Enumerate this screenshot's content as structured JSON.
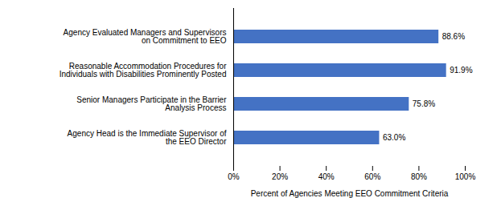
{
  "chart_data": {
    "type": "bar",
    "orientation": "horizontal",
    "categories": [
      "Agency Head is the Immediate Supervisor of\nthe EEO Director",
      "Senior Managers Participate in the Barrier\nAnalysis Process",
      "Reasonable Accommodation Procedures for\nIndividuals with Disabilities Prominently Posted",
      "Agency Evaluated Managers and Supervisors\non Commitment to EEO"
    ],
    "values": [
      63.0,
      75.8,
      91.9,
      88.6
    ],
    "value_labels": [
      "63.0%",
      "75.8%",
      "91.9%",
      "88.6%"
    ],
    "data_labels": true,
    "color": "#4472C4",
    "xlabel": "Percent of Agencies Meeting EEO Commitment Criteria",
    "xlim": [
      0,
      100
    ],
    "xticks": [
      {
        "value": 0,
        "label": "0%"
      },
      {
        "value": 20,
        "label": "20%"
      },
      {
        "value": 40,
        "label": "40%"
      },
      {
        "value": 60,
        "label": "60%"
      },
      {
        "value": 80,
        "label": "80%"
      },
      {
        "value": 100,
        "label": "100%"
      }
    ],
    "grid": false
  }
}
